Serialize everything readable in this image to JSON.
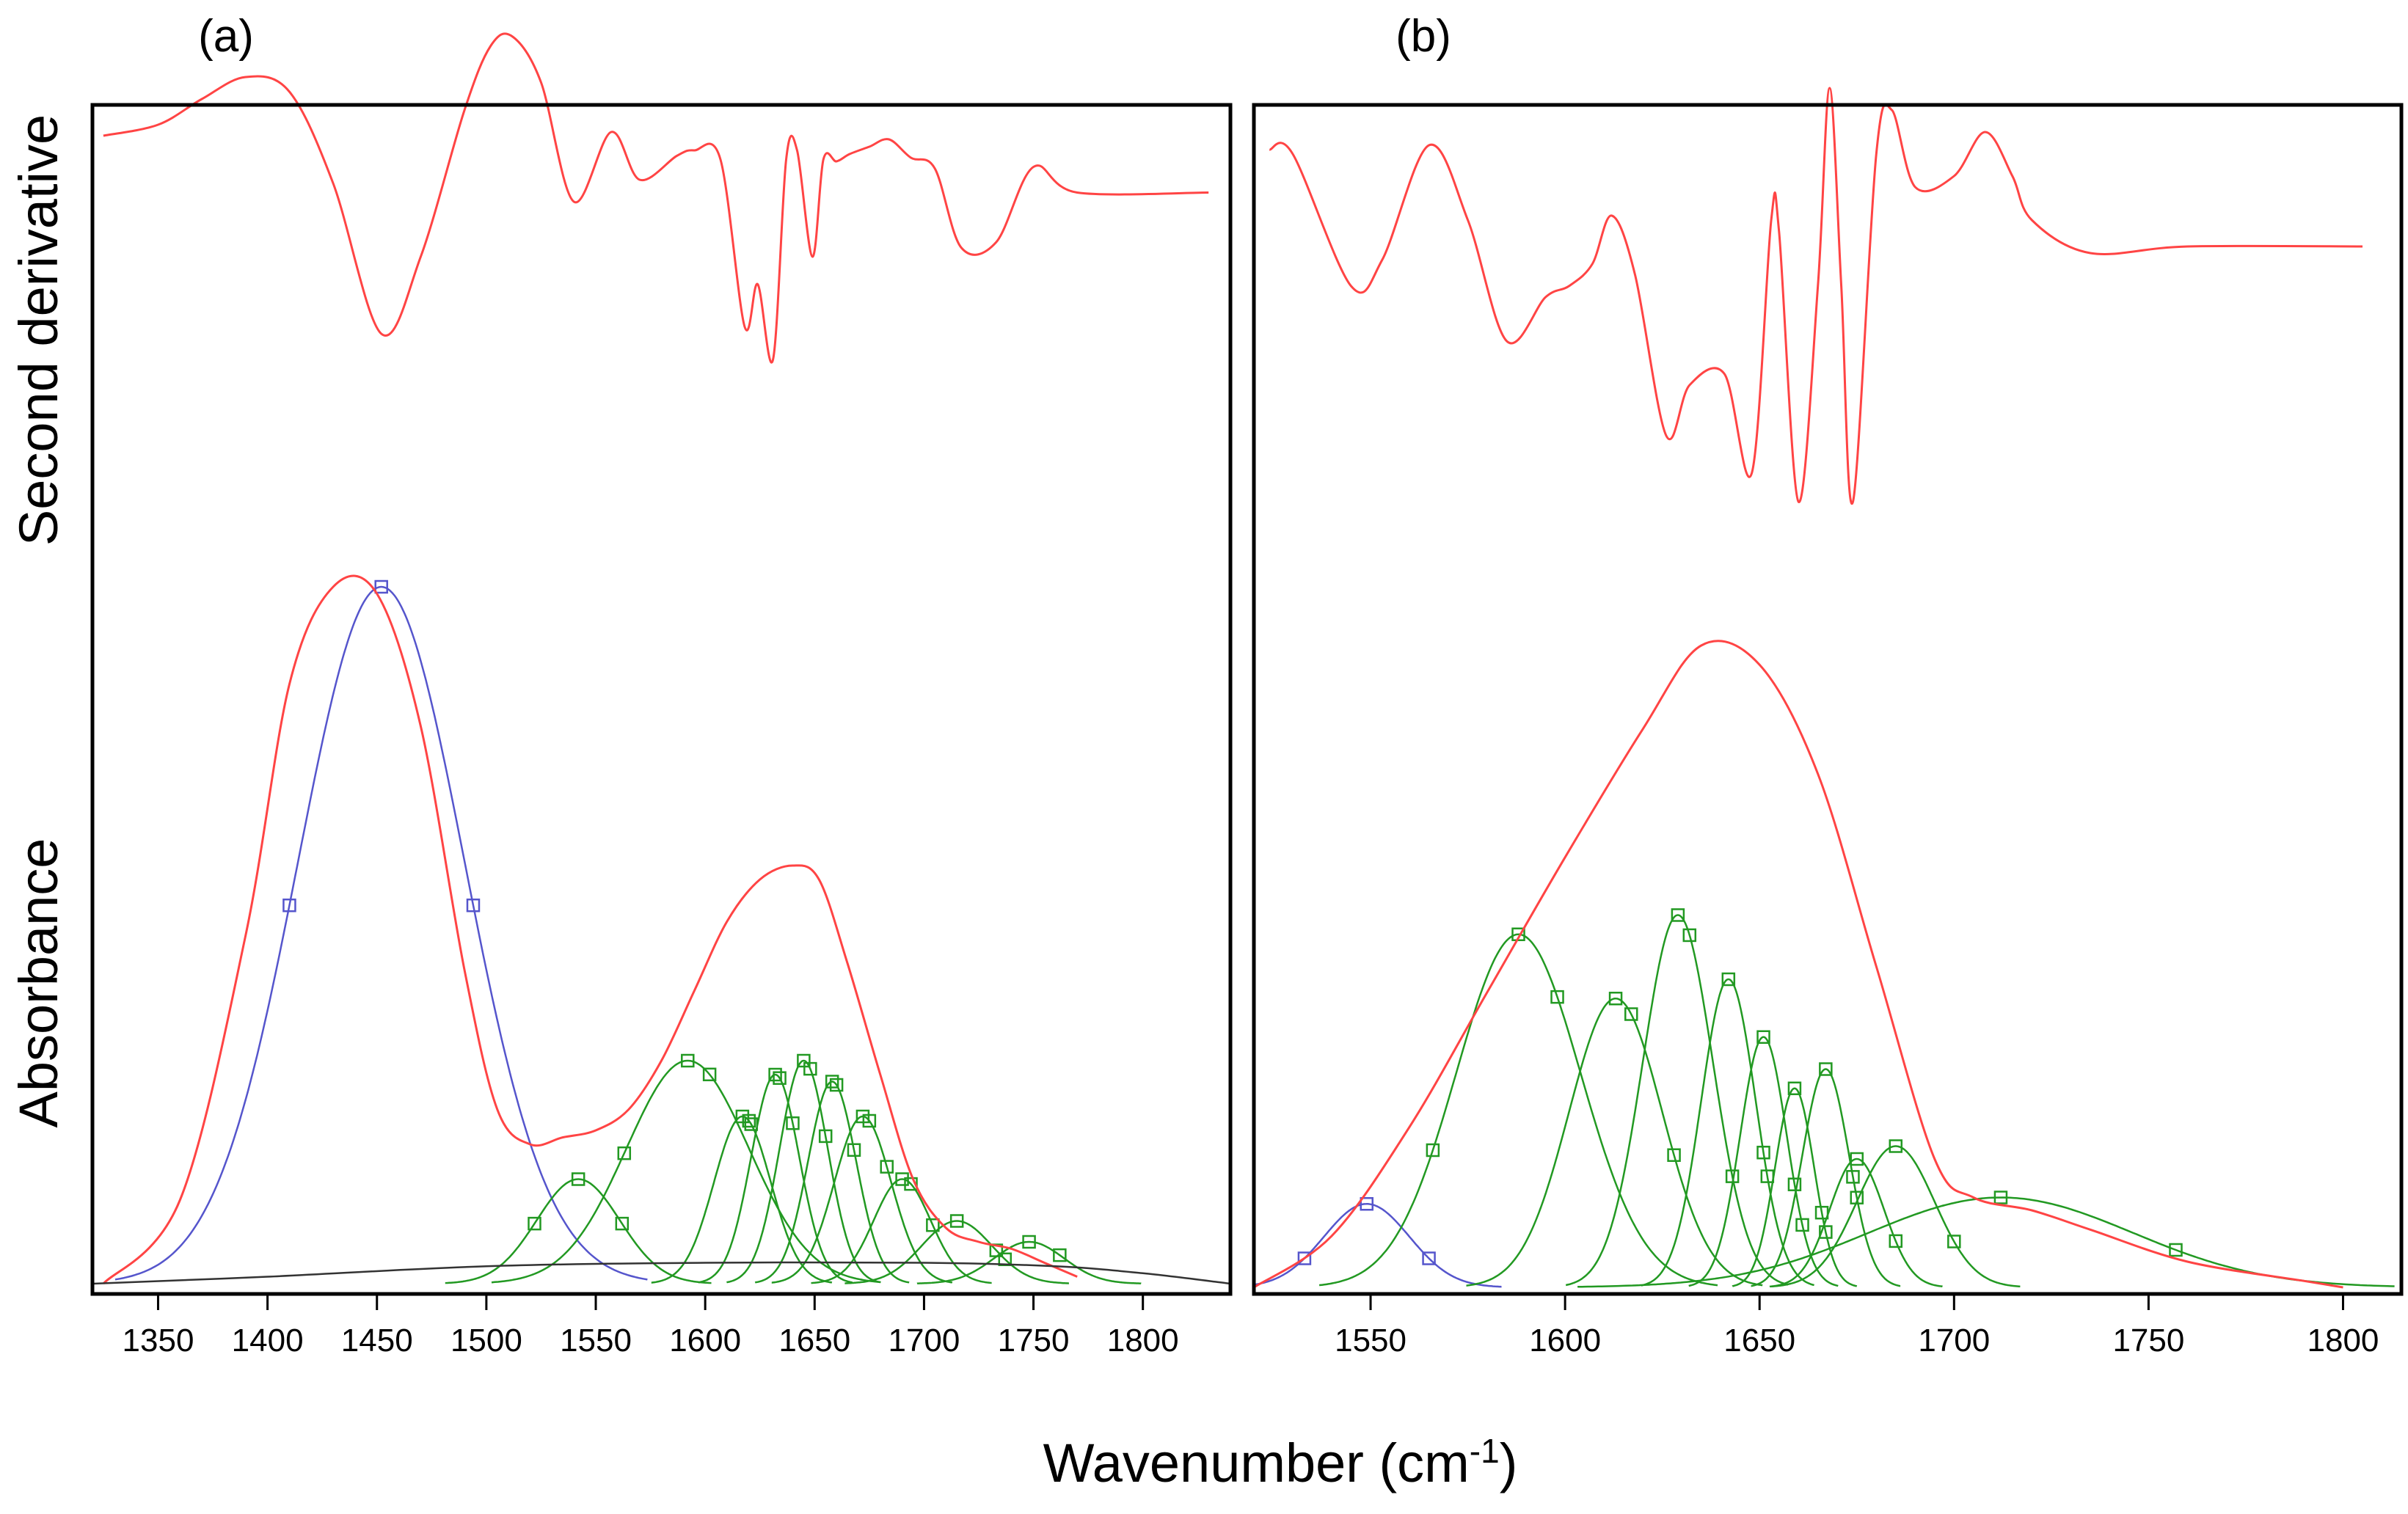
{
  "figure": {
    "xlabel_main": "Wavenumber (cm",
    "xlabel_sup": "-1",
    "xlabel_close": ")",
    "ylabel_top": "Second derivative",
    "ylabel_bottom": "Absorbance"
  },
  "colors": {
    "second_derivative": "#ff4444",
    "absorbance": "#ff4444",
    "band_amide_ii": "#5555cc",
    "band_component": "#229922",
    "baseline": "#333333",
    "marker": "#229922"
  },
  "chart_data": [
    {
      "type": "line",
      "panel": "(a)",
      "xlabel": "Wavenumber (cm-1)",
      "xlim": [
        1320,
        1840
      ],
      "xticks": [
        1350,
        1400,
        1450,
        1500,
        1550,
        1600,
        1650,
        1700,
        1750,
        1800
      ],
      "series": [
        {
          "name": "Second derivative",
          "role": "second_derivative",
          "x": [
            1325,
            1350,
            1370,
            1390,
            1410,
            1430,
            1452,
            1470,
            1490,
            1502,
            1512,
            1525,
            1540,
            1557,
            1570,
            1587,
            1595,
            1607,
            1618,
            1624,
            1631,
            1637,
            1642,
            1649,
            1654,
            1660,
            1666,
            1675,
            1684,
            1694,
            1705,
            1717,
            1733,
            1750,
            1770,
            1830
          ],
          "y": [
            0.46,
            0.52,
            0.66,
            0.78,
            0.7,
            0.2,
            -0.62,
            -0.2,
            0.6,
            0.95,
            1.0,
            0.75,
            0.1,
            0.48,
            0.22,
            0.35,
            0.38,
            0.33,
            -0.58,
            -0.35,
            -0.76,
            0.33,
            0.38,
            -0.2,
            0.33,
            0.32,
            0.36,
            0.4,
            0.44,
            0.34,
            0.28,
            -0.15,
            -0.12,
            0.29,
            0.15,
            0.15
          ]
        },
        {
          "name": "Absorbance",
          "role": "absorbance",
          "x": [
            1325,
            1360,
            1390,
            1410,
            1430,
            1450,
            1470,
            1490,
            1505,
            1520,
            1535,
            1550,
            1565,
            1580,
            1595,
            1610,
            1625,
            1640,
            1652,
            1665,
            1680,
            1695,
            1710,
            1725,
            1740,
            1755,
            1770
          ],
          "y": [
            0.0,
            0.12,
            0.5,
            0.86,
            1.0,
            0.99,
            0.8,
            0.45,
            0.25,
            0.2,
            0.21,
            0.22,
            0.25,
            0.32,
            0.42,
            0.52,
            0.58,
            0.6,
            0.58,
            0.46,
            0.3,
            0.15,
            0.08,
            0.06,
            0.05,
            0.03,
            0.01
          ]
        },
        {
          "name": "Baseline",
          "role": "baseline",
          "x": [
            1320,
            1400,
            1500,
            1600,
            1700,
            1760,
            1800,
            1840
          ],
          "y": [
            0.0,
            0.01,
            0.025,
            0.03,
            0.03,
            0.025,
            0.015,
            0.0
          ]
        }
      ],
      "bands": [
        {
          "center": 1452,
          "height": 1.0,
          "width": 38,
          "role": "band_amide_ii",
          "markers": [
            1410,
            1452,
            1494
          ]
        },
        {
          "center": 1542,
          "height": 0.15,
          "width": 19,
          "role": "band_component",
          "markers": [
            1522,
            1542,
            1562
          ]
        },
        {
          "center": 1592,
          "height": 0.32,
          "width": 28,
          "role": "band_component",
          "markers": [
            1563,
            1592,
            1602
          ]
        },
        {
          "center": 1617,
          "height": 0.24,
          "width": 13,
          "role": "band_component",
          "markers": [
            1617,
            1620,
            1621
          ]
        },
        {
          "center": 1632,
          "height": 0.3,
          "width": 11,
          "role": "band_component",
          "markers": [
            1632,
            1634,
            1640
          ]
        },
        {
          "center": 1645,
          "height": 0.32,
          "width": 11,
          "role": "band_component",
          "markers": [
            1645,
            1648,
            1655
          ]
        },
        {
          "center": 1658,
          "height": 0.29,
          "width": 11,
          "role": "band_component",
          "markers": [
            1658,
            1660,
            1668
          ]
        },
        {
          "center": 1672,
          "height": 0.24,
          "width": 13,
          "role": "band_component",
          "markers": [
            1672,
            1675,
            1683
          ]
        },
        {
          "center": 1690,
          "height": 0.15,
          "width": 13,
          "role": "band_component",
          "markers": [
            1690,
            1694,
            1704
          ]
        },
        {
          "center": 1715,
          "height": 0.09,
          "width": 16,
          "role": "band_component",
          "markers": [
            1715,
            1733,
            1737
          ]
        },
        {
          "center": 1748,
          "height": 0.06,
          "width": 16,
          "role": "band_component",
          "markers": [
            1748,
            1762
          ]
        }
      ]
    },
    {
      "type": "line",
      "panel": "(b)",
      "xlabel": "Wavenumber (cm-1)",
      "xlim": [
        1520,
        1815
      ],
      "xticks": [
        1550,
        1600,
        1650,
        1700,
        1750,
        1800
      ],
      "series": [
        {
          "name": "Second derivative",
          "role": "second_derivative",
          "x": [
            1524,
            1530,
            1545,
            1553,
            1565,
            1575,
            1585,
            1595,
            1601,
            1607,
            1612,
            1618,
            1626,
            1632,
            1641,
            1648,
            1653,
            1655,
            1660,
            1665,
            1668,
            1671,
            1674,
            1680,
            1684,
            1690,
            1700,
            1708,
            1715,
            1720,
            1735,
            1760,
            1805
          ],
          "y": [
            0.72,
            0.7,
            0.1,
            0.22,
            0.74,
            0.4,
            -0.15,
            0.05,
            0.1,
            0.2,
            0.42,
            0.15,
            -0.58,
            -0.35,
            -0.3,
            -0.75,
            0.4,
            0.35,
            -0.88,
            0.1,
            1.0,
            0.1,
            -0.88,
            0.7,
            0.9,
            0.55,
            0.6,
            0.8,
            0.6,
            0.4,
            0.25,
            0.28,
            0.28
          ]
        },
        {
          "name": "Absorbance",
          "role": "absorbance",
          "x": [
            1520,
            1540,
            1560,
            1580,
            1600,
            1620,
            1635,
            1650,
            1665,
            1680,
            1695,
            1705,
            1720,
            1735,
            1760,
            1790,
            1800
          ],
          "y": [
            0.0,
            0.08,
            0.25,
            0.46,
            0.67,
            0.87,
            1.0,
            0.97,
            0.8,
            0.5,
            0.2,
            0.14,
            0.12,
            0.09,
            0.04,
            0.01,
            0.0
          ]
        }
      ],
      "bands": [
        {
          "center": 1549,
          "height": 0.13,
          "width": 11,
          "role": "band_amide_ii",
          "markers": [
            1533,
            1549,
            1565
          ]
        },
        {
          "center": 1588,
          "height": 0.55,
          "width": 16,
          "role": "band_component",
          "markers": [
            1566,
            1588,
            1598
          ]
        },
        {
          "center": 1613,
          "height": 0.45,
          "width": 12,
          "role": "band_component",
          "markers": [
            1613,
            1617,
            1628
          ]
        },
        {
          "center": 1629,
          "height": 0.58,
          "width": 9,
          "role": "band_component",
          "markers": [
            1629,
            1632,
            1643
          ]
        },
        {
          "center": 1642,
          "height": 0.48,
          "width": 7,
          "role": "band_component",
          "markers": [
            1642,
            1651,
            1652
          ]
        },
        {
          "center": 1651,
          "height": 0.39,
          "width": 6,
          "role": "band_component",
          "markers": [
            1651,
            1659,
            1661
          ]
        },
        {
          "center": 1659,
          "height": 0.31,
          "width": 5,
          "role": "band_component",
          "markers": [
            1659,
            1666,
            1667
          ]
        },
        {
          "center": 1667,
          "height": 0.34,
          "width": 6,
          "role": "band_component",
          "markers": [
            1667,
            1674,
            1675
          ]
        },
        {
          "center": 1675,
          "height": 0.2,
          "width": 7,
          "role": "band_component",
          "markers": [
            1675,
            1685
          ]
        },
        {
          "center": 1685,
          "height": 0.22,
          "width": 10,
          "role": "band_component",
          "markers": [
            1685,
            1700
          ]
        },
        {
          "center": 1712,
          "height": 0.14,
          "width": 34,
          "role": "band_component",
          "markers": [
            1712,
            1757
          ]
        }
      ]
    }
  ]
}
